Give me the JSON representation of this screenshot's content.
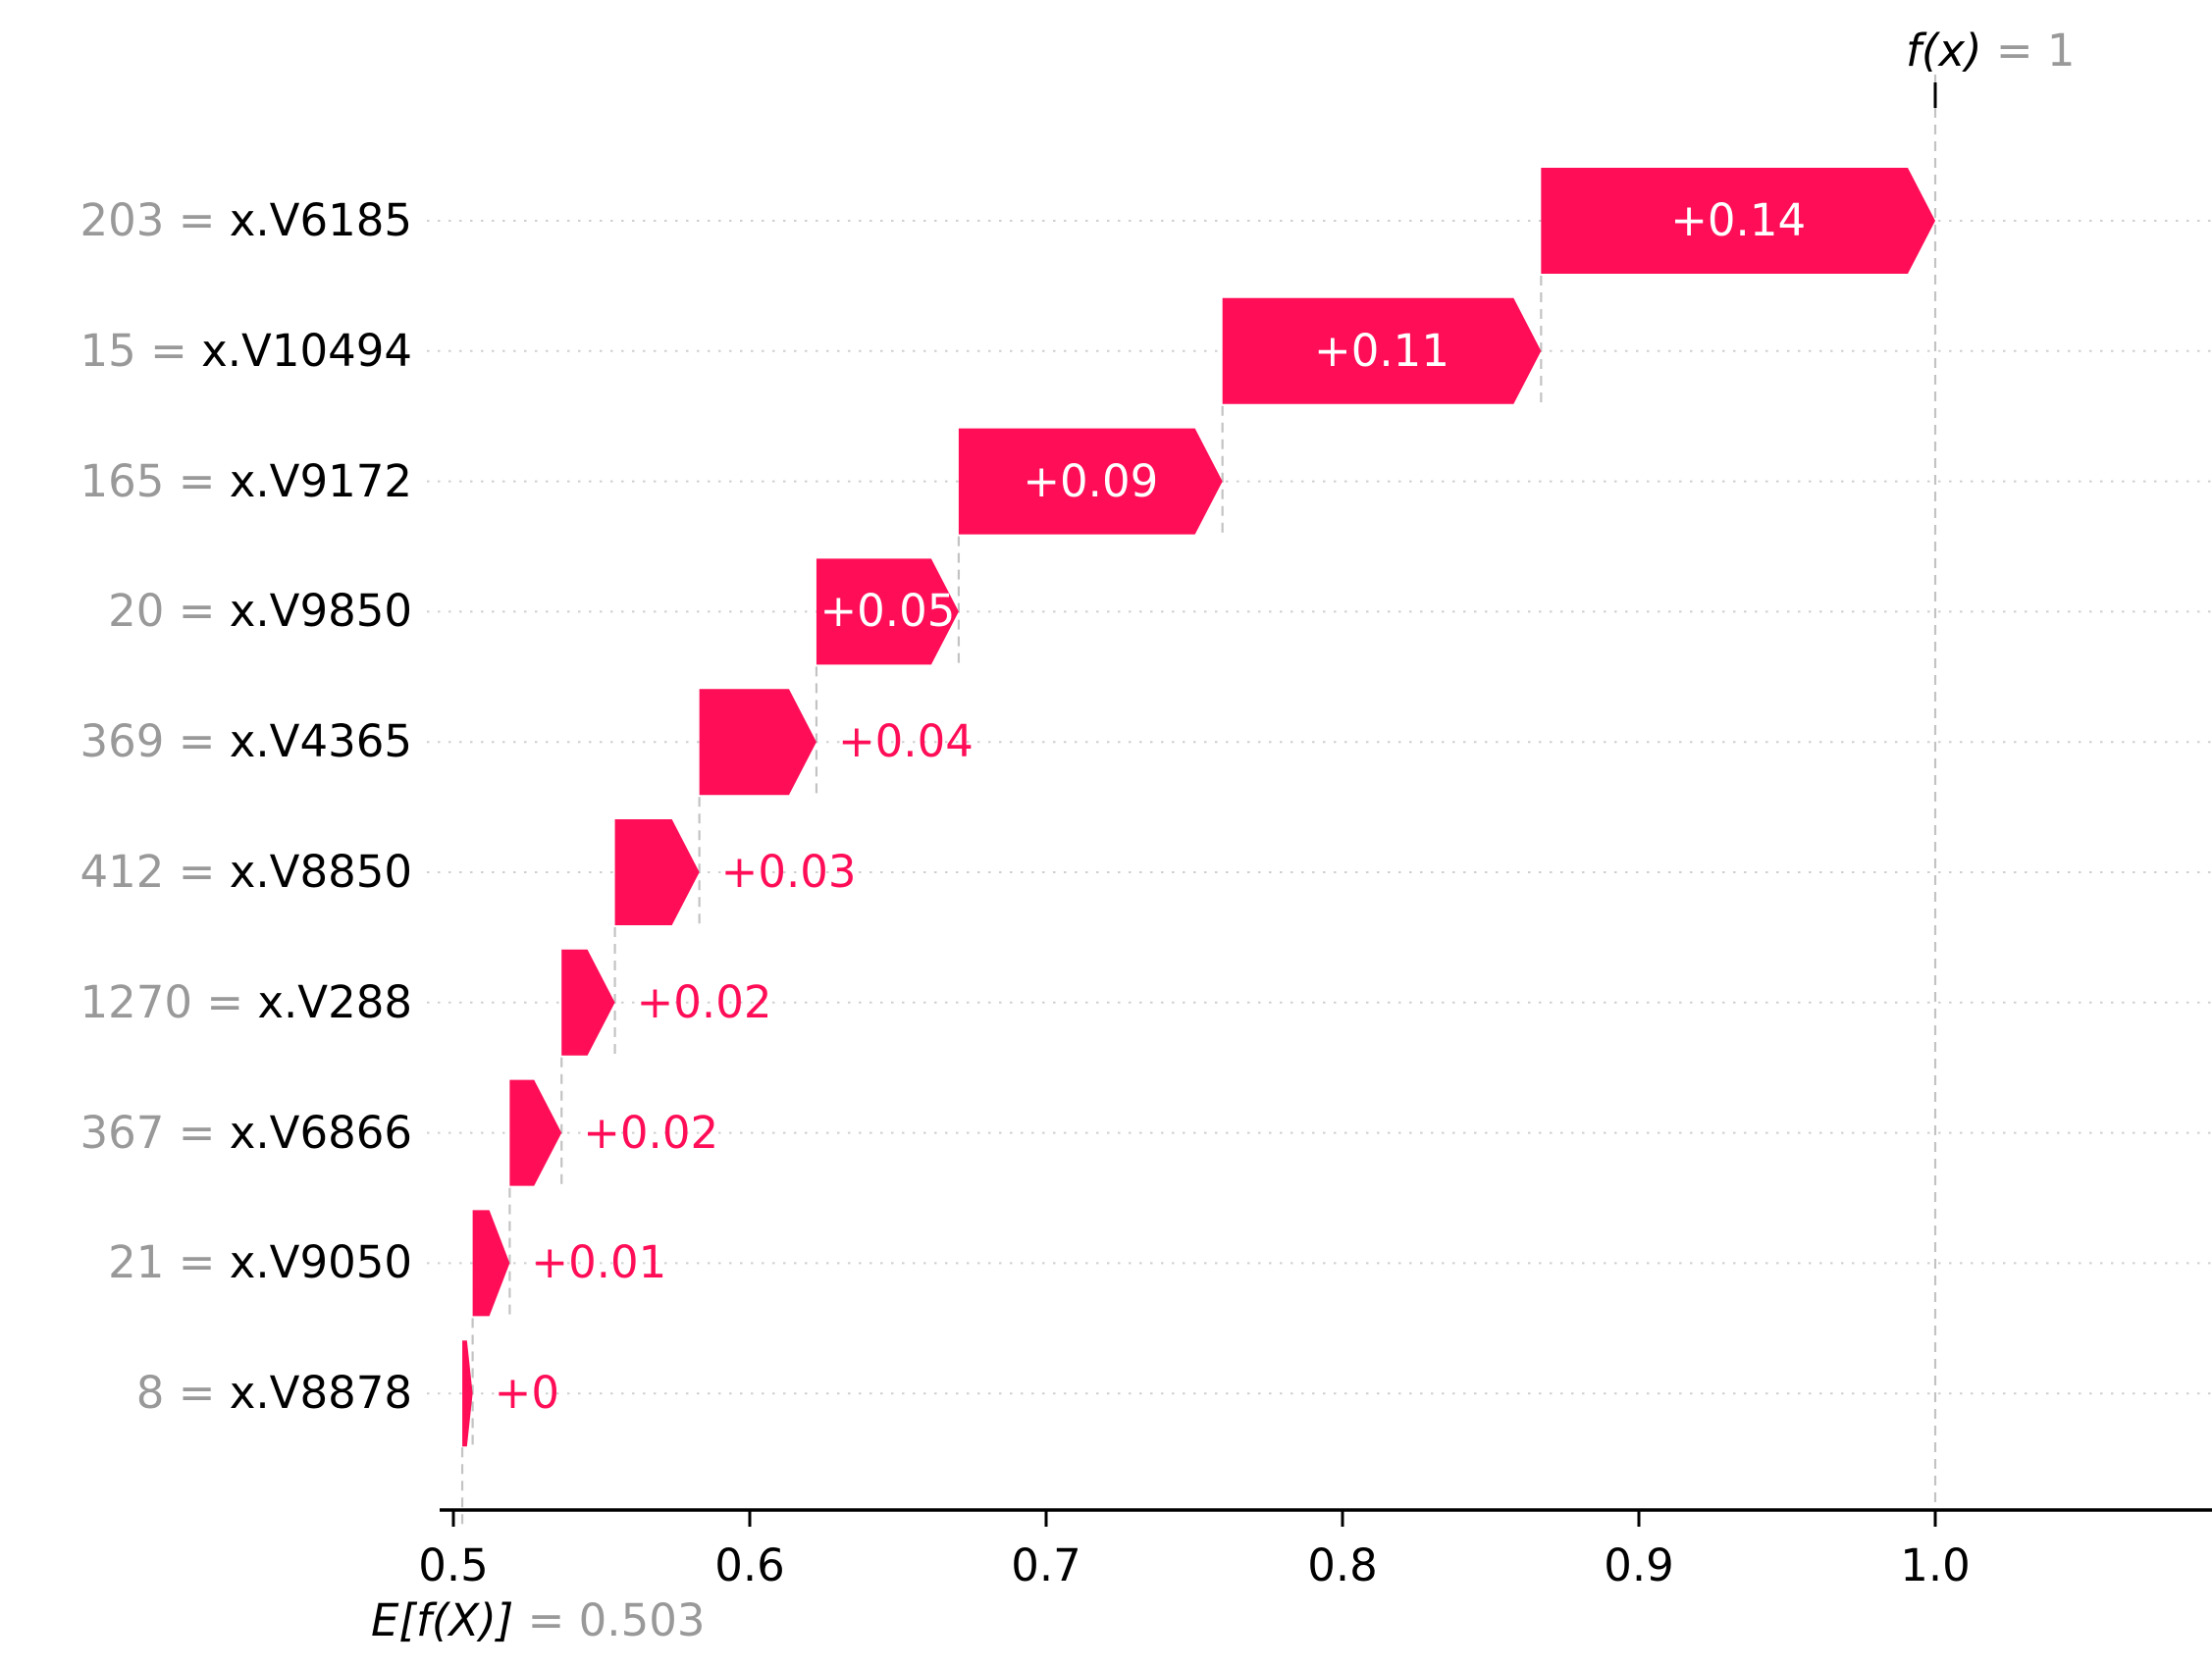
{
  "chart_data": {
    "type": "waterfall",
    "library_style": "shap-waterfall",
    "fx_label": {
      "lhs": "f(x)",
      "eq": " = ",
      "value": "1"
    },
    "expected_label": {
      "lhs": "E[f(X)]",
      "eq": " = ",
      "value": "0.503"
    },
    "base_value": 0.503,
    "fx_value": 1.0,
    "xlim": [
      0.495,
      1.093
    ],
    "x_ticks": [
      {
        "label": "0.5",
        "value": 0.5
      },
      {
        "label": "0.6",
        "value": 0.6
      },
      {
        "label": "0.7",
        "value": 0.7
      },
      {
        "label": "0.8",
        "value": 0.8
      },
      {
        "label": "0.9",
        "value": 0.9
      },
      {
        "label": "1.0",
        "value": 1.0
      }
    ],
    "rows": [
      {
        "data_value": "203",
        "feature": "x.V6185",
        "label": "+0.14",
        "start": 0.867,
        "end": 1.0,
        "label_inside": true
      },
      {
        "data_value": "15",
        "feature": "x.V10494",
        "label": "+0.11",
        "start": 0.7595,
        "end": 0.867,
        "label_inside": true
      },
      {
        "data_value": "165",
        "feature": "x.V9172",
        "label": "+0.09",
        "start": 0.6705,
        "end": 0.7595,
        "label_inside": true
      },
      {
        "data_value": "20",
        "feature": "x.V9850",
        "label": "+0.05",
        "start": 0.6225,
        "end": 0.6705,
        "label_inside": true
      },
      {
        "data_value": "369",
        "feature": "x.V4365",
        "label": "+0.04",
        "start": 0.583,
        "end": 0.6225,
        "label_inside": false
      },
      {
        "data_value": "412",
        "feature": "x.V8850",
        "label": "+0.03",
        "start": 0.5545,
        "end": 0.583,
        "label_inside": false
      },
      {
        "data_value": "1270",
        "feature": "x.V288",
        "label": "+0.02",
        "start": 0.5365,
        "end": 0.5545,
        "label_inside": false
      },
      {
        "data_value": "367",
        "feature": "x.V6866",
        "label": "+0.02",
        "start": 0.519,
        "end": 0.5365,
        "label_inside": false
      },
      {
        "data_value": "21",
        "feature": "x.V9050",
        "label": "+0.01",
        "start": 0.5065,
        "end": 0.519,
        "label_inside": false
      },
      {
        "data_value": "8",
        "feature": "x.V8878",
        "label": "+0",
        "start": 0.503,
        "end": 0.5065,
        "label_inside": false
      }
    ],
    "equals_separator": " = ",
    "colors": {
      "positive_bar": "#ff0d57",
      "gray_text": "#999999",
      "black_text": "#000000",
      "dotted_grid": "#cfcfcf",
      "dashed_line": "#c3c3c3",
      "axis": "#000000",
      "background": "#ffffff",
      "bar_label_inside": "#ffffff"
    }
  }
}
